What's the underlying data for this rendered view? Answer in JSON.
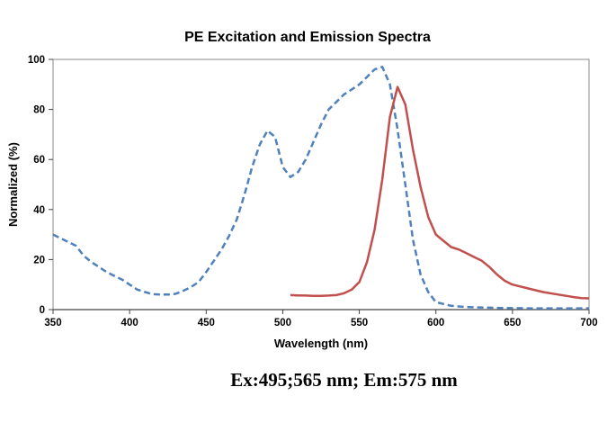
{
  "chart_data": {
    "type": "line",
    "title": "PE Excitation and Emission Spectra",
    "xlabel": "Wavelength (nm)",
    "ylabel": "Normalized (%)",
    "xlim": [
      350,
      700
    ],
    "ylim": [
      0,
      100
    ],
    "xticks": [
      350,
      400,
      450,
      500,
      550,
      600,
      650,
      700
    ],
    "yticks": [
      0,
      20,
      40,
      60,
      80,
      100
    ],
    "grid": false,
    "legend": "none",
    "series": [
      {
        "name": "Excitation",
        "color": "#4f81bd",
        "style": "dashed",
        "x": [
          350,
          355,
          360,
          365,
          370,
          375,
          380,
          385,
          390,
          395,
          400,
          405,
          410,
          415,
          420,
          425,
          430,
          435,
          440,
          445,
          450,
          455,
          460,
          465,
          470,
          475,
          480,
          485,
          490,
          495,
          500,
          505,
          510,
          515,
          520,
          525,
          530,
          535,
          540,
          545,
          550,
          555,
          560,
          565,
          570,
          575,
          580,
          585,
          590,
          595,
          600,
          610,
          620,
          640,
          660,
          680,
          700
        ],
        "y": [
          30,
          28.5,
          27,
          25.5,
          21.5,
          19,
          17,
          15,
          13.5,
          12,
          10,
          8,
          7,
          6.2,
          6,
          6,
          6.3,
          7.5,
          9,
          11,
          15,
          19.5,
          24,
          29.5,
          36,
          46,
          57,
          66,
          71.5,
          69,
          57,
          53,
          55,
          60,
          67,
          74,
          80,
          83,
          86,
          88,
          90,
          93,
          96,
          97,
          90,
          72,
          50,
          28,
          14,
          7,
          3,
          1.5,
          1,
          0.7,
          0.5,
          0.5,
          0.5
        ]
      },
      {
        "name": "Emission",
        "color": "#c0504d",
        "style": "solid",
        "x": [
          505,
          510,
          515,
          520,
          525,
          530,
          535,
          540,
          545,
          550,
          555,
          560,
          565,
          570,
          575,
          580,
          585,
          590,
          595,
          600,
          605,
          610,
          615,
          620,
          625,
          630,
          635,
          640,
          645,
          650,
          660,
          670,
          680,
          690,
          695,
          700
        ],
        "y": [
          5.8,
          5.7,
          5.6,
          5.5,
          5.5,
          5.6,
          5.8,
          6.5,
          8,
          11,
          19,
          32,
          52,
          77,
          89,
          82,
          64,
          49,
          37,
          30,
          27.5,
          25,
          24,
          22.5,
          21,
          19.5,
          17,
          14,
          11.5,
          10,
          8.5,
          7,
          6,
          5,
          4.6,
          4.5
        ]
      }
    ]
  },
  "caption": "Ex:495;565 nm; Em:575 nm"
}
